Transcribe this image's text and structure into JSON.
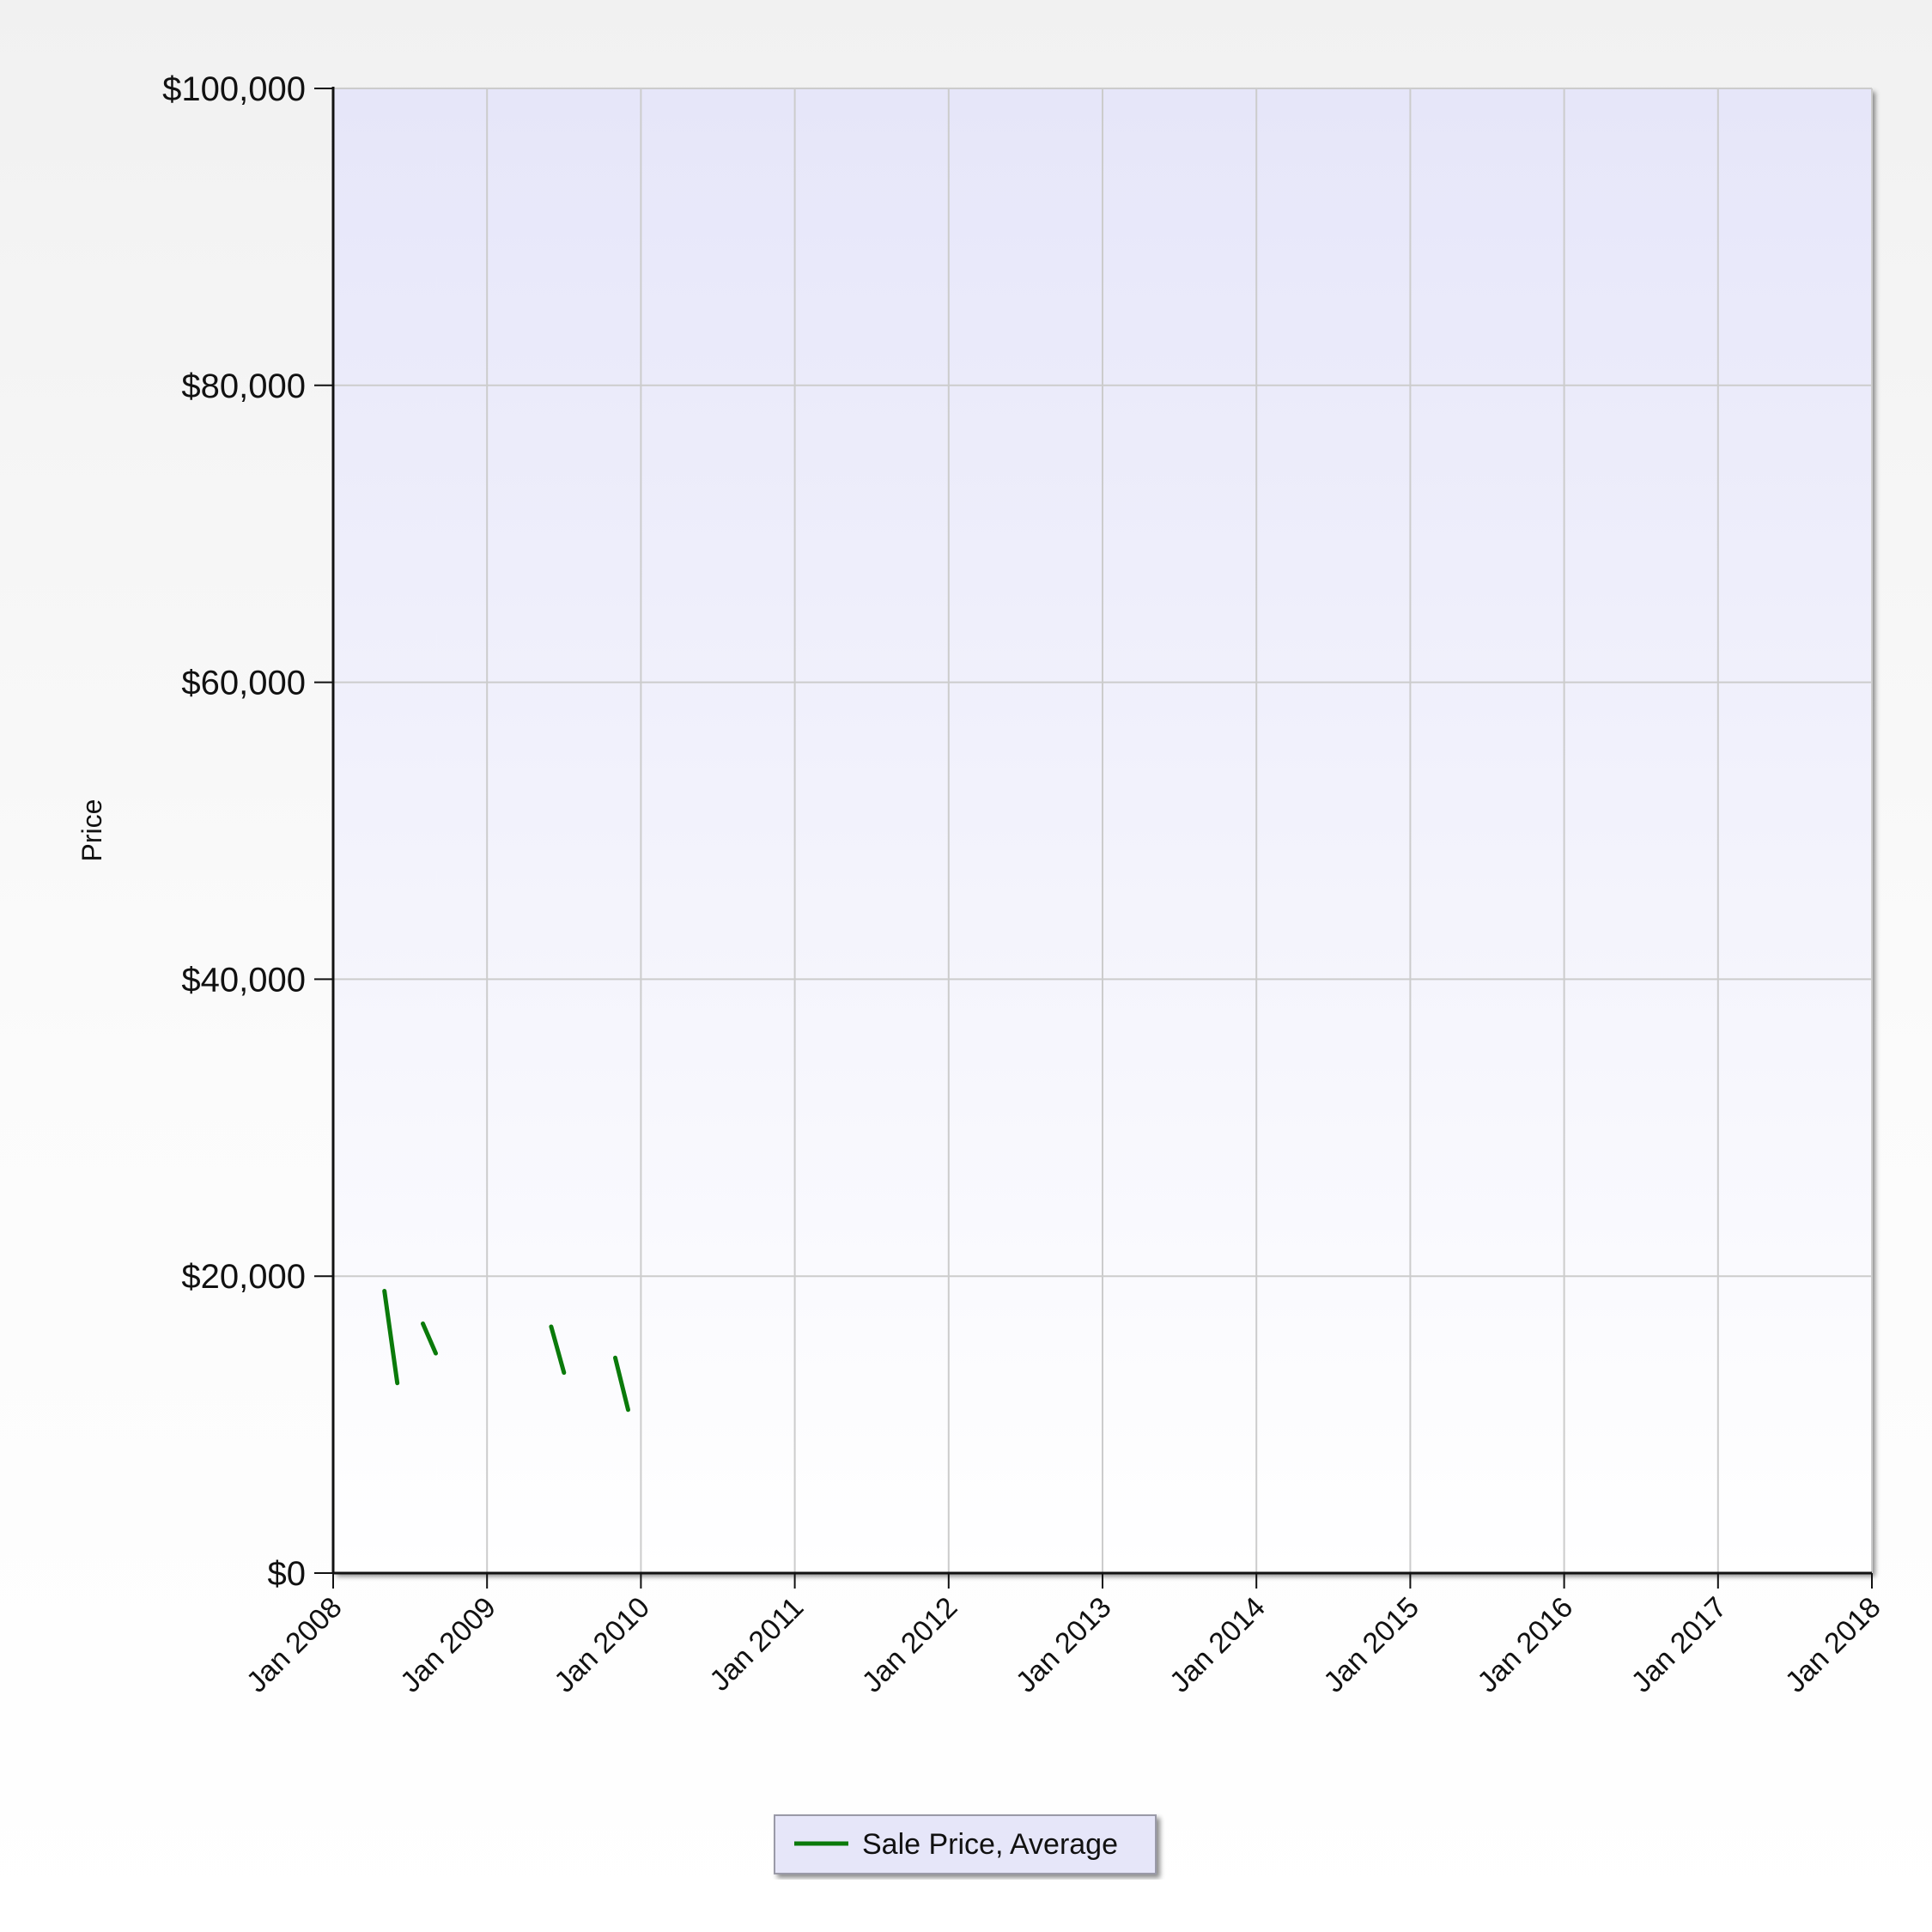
{
  "chart_data": {
    "type": "line",
    "title": "",
    "xlabel": "",
    "ylabel": "Price",
    "ylim": [
      0,
      100000
    ],
    "xlim": [
      "2008-01",
      "2018-01"
    ],
    "grid": true,
    "legend_position": "bottom-center",
    "y_ticks": [
      {
        "value": 0,
        "label": "$0"
      },
      {
        "value": 20000,
        "label": "$20,000"
      },
      {
        "value": 40000,
        "label": "$40,000"
      },
      {
        "value": 60000,
        "label": "$60,000"
      },
      {
        "value": 80000,
        "label": "$80,000"
      },
      {
        "value": 100000,
        "label": "$100,000"
      }
    ],
    "x_ticks": [
      {
        "value": "2008-01",
        "label": "Jan 2008"
      },
      {
        "value": "2009-01",
        "label": "Jan 2009"
      },
      {
        "value": "2010-01",
        "label": "Jan 2010"
      },
      {
        "value": "2011-01",
        "label": "Jan 2011"
      },
      {
        "value": "2012-01",
        "label": "Jan 2012"
      },
      {
        "value": "2013-01",
        "label": "Jan 2013"
      },
      {
        "value": "2014-01",
        "label": "Jan 2014"
      },
      {
        "value": "2015-01",
        "label": "Jan 2015"
      },
      {
        "value": "2016-01",
        "label": "Jan 2016"
      },
      {
        "value": "2017-01",
        "label": "Jan 2017"
      },
      {
        "value": "2018-01",
        "label": "Jan 2018"
      }
    ],
    "series": [
      {
        "name": "Sale Price, Average",
        "color": "#0a7a0a",
        "segments": [
          [
            [
              "2008-05-01",
              19000
            ],
            [
              "2008-06-01",
              12800
            ]
          ],
          [
            [
              "2008-08-01",
              16800
            ],
            [
              "2008-09-01",
              14800
            ]
          ],
          [
            [
              "2009-06-01",
              16600
            ],
            [
              "2009-07-01",
              13500
            ]
          ],
          [
            [
              "2009-11-01",
              14500
            ],
            [
              "2009-12-01",
              11000
            ]
          ]
        ]
      }
    ]
  },
  "colors": {
    "plot_bg_top": "#e6e6f9",
    "plot_bg_bottom": "#ffffff",
    "grid": "#cccccc",
    "axis": "#111111",
    "line": "#0a7a0a",
    "legend_bg": "#e6e6f9",
    "legend_border": "#9a9aa8"
  }
}
